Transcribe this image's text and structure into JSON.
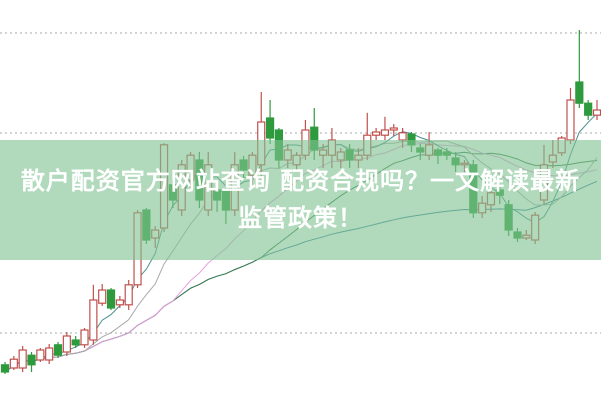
{
  "banner": {
    "line1": "散户配资官方网站查询 配资合规吗？一文解读最新",
    "line2": "监管政策！"
  },
  "chart_data": {
    "type": "candlestick",
    "ylim": [
      0,
      100
    ],
    "grid": true,
    "colors": {
      "up": "#c0504d",
      "down": "#2e9a3e",
      "ma5": "#4a8f8f",
      "ma10": "#aaaaaa",
      "ma20": "#e8a0e0",
      "ma30": "#3a7a4a",
      "ma60": "#3d7fa0"
    },
    "ohlc": [
      [
        8.8,
        9.5,
        6.5,
        7
      ],
      [
        8,
        11,
        7.5,
        10.2
      ],
      [
        8,
        13.5,
        7,
        12.5
      ],
      [
        11.2,
        12,
        7,
        8.8
      ],
      [
        10,
        13,
        9.5,
        12.5
      ],
      [
        10,
        14,
        9,
        13
      ],
      [
        13.8,
        14.5,
        10.5,
        11.2
      ],
      [
        12,
        17,
        11,
        16
      ],
      [
        15,
        16,
        13,
        13.8
      ],
      [
        13.8,
        18,
        13,
        17.5
      ],
      [
        15,
        28.8,
        13.8,
        25
      ],
      [
        24.2,
        29,
        23.5,
        27.5
      ],
      [
        27.5,
        28,
        22.5,
        23
      ],
      [
        23.8,
        26,
        23,
        25
      ],
      [
        23.8,
        30,
        22.5,
        28.8
      ],
      [
        28.8,
        47.5,
        28,
        46.8
      ],
      [
        47.5,
        48,
        39,
        40
      ],
      [
        40.5,
        43.5,
        38,
        42.5
      ],
      [
        43,
        64.2,
        42,
        63.8
      ],
      [
        53.8,
        55,
        48,
        50
      ],
      [
        47.5,
        60,
        46,
        58.8
      ],
      [
        55,
        62,
        53,
        61.2
      ],
      [
        60,
        62,
        48,
        50
      ],
      [
        47.5,
        62,
        46,
        58.8
      ],
      [
        52.5,
        54,
        47,
        50
      ],
      [
        52.5,
        55,
        44,
        47.5
      ],
      [
        47.5,
        62,
        46,
        58.8
      ],
      [
        60,
        61,
        55,
        57.5
      ],
      [
        56.2,
        62,
        53,
        61.2
      ],
      [
        58.8,
        77,
        55,
        69.5
      ],
      [
        70.5,
        75,
        64,
        65.5
      ],
      [
        67.5,
        68,
        58,
        60
      ],
      [
        60,
        64,
        58,
        62.5
      ],
      [
        58.8,
        62,
        57,
        61.2
      ],
      [
        61.2,
        70,
        60,
        67.5
      ],
      [
        68.2,
        73,
        60,
        62.5
      ],
      [
        61.2,
        64,
        58,
        62.5
      ],
      [
        61.2,
        68,
        58,
        65
      ],
      [
        60,
        63,
        58,
        62
      ],
      [
        62.5,
        64,
        58,
        60
      ],
      [
        60,
        63,
        58,
        61.2
      ],
      [
        61.2,
        71.8,
        60,
        66.2
      ],
      [
        66.2,
        68,
        65,
        67
      ],
      [
        66.2,
        70.8,
        65,
        67.5
      ],
      [
        67.5,
        69,
        66,
        68
      ],
      [
        65,
        68,
        63,
        66.8
      ],
      [
        66.5,
        67,
        62,
        63.8
      ],
      [
        63,
        64,
        60,
        62
      ],
      [
        61.2,
        67,
        60,
        63.8
      ],
      [
        62.5,
        63,
        59,
        61.2
      ],
      [
        62,
        63,
        60,
        61.2
      ],
      [
        60.5,
        62,
        57,
        58.8
      ],
      [
        58.8,
        60,
        57,
        59.2
      ],
      [
        58.8,
        60,
        45.5,
        46.8
      ],
      [
        46.8,
        51,
        45.5,
        49.2
      ],
      [
        48.8,
        54,
        47,
        51.8
      ],
      [
        52.5,
        54,
        49,
        51.2
      ],
      [
        48.8,
        50,
        41,
        42.5
      ],
      [
        42,
        43,
        39.5,
        40.5
      ],
      [
        40.5,
        42.5,
        40,
        41.2
      ],
      [
        40,
        47,
        39,
        46.2
      ],
      [
        50,
        63.8,
        49,
        58.8
      ],
      [
        59.5,
        65,
        58,
        61.2
      ],
      [
        61.8,
        66,
        61,
        65.5
      ],
      [
        65,
        78,
        64,
        75
      ],
      [
        79.5,
        92.5,
        73,
        74.2
      ],
      [
        74.2,
        75,
        70,
        71.2
      ],
      [
        71.2,
        75,
        70,
        72.5
      ]
    ]
  }
}
